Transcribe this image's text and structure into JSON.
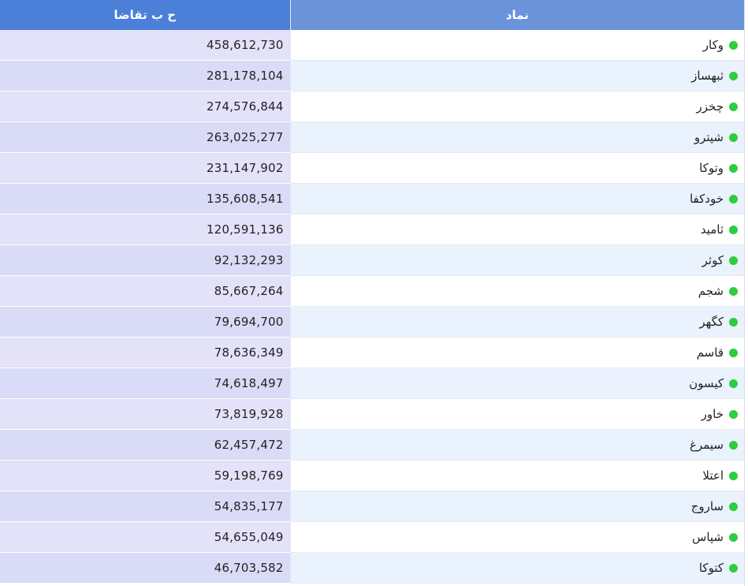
{
  "table": {
    "headers": {
      "value": "ح ب تقاضا",
      "symbol": "نماد"
    },
    "status_color": "#2ecc40",
    "rows": [
      {
        "symbol": "وکار",
        "value": "458,612,730",
        "status_icon": "green-dot-icon"
      },
      {
        "symbol": "ثبهساز",
        "value": "281,178,104",
        "status_icon": "green-dot-icon"
      },
      {
        "symbol": "چخزر",
        "value": "274,576,844",
        "status_icon": "green-dot-icon"
      },
      {
        "symbol": "شپترو",
        "value": "263,025,277",
        "status_icon": "green-dot-icon"
      },
      {
        "symbol": "وتوکا",
        "value": "231,147,902",
        "status_icon": "green-dot-icon"
      },
      {
        "symbol": "خودکفا",
        "value": "135,608,541",
        "status_icon": "green-dot-icon"
      },
      {
        "symbol": "ثامید",
        "value": "120,591,136",
        "status_icon": "green-dot-icon"
      },
      {
        "symbol": "کوثر",
        "value": "92,132,293",
        "status_icon": "green-dot-icon"
      },
      {
        "symbol": "شجم",
        "value": "85,667,264",
        "status_icon": "green-dot-icon"
      },
      {
        "symbol": "کگهر",
        "value": "79,694,700",
        "status_icon": "green-dot-icon"
      },
      {
        "symbol": "قاسم",
        "value": "78,636,349",
        "status_icon": "green-dot-icon"
      },
      {
        "symbol": "کیسون",
        "value": "74,618,497",
        "status_icon": "green-dot-icon"
      },
      {
        "symbol": "خاور",
        "value": "73,819,928",
        "status_icon": "green-dot-icon"
      },
      {
        "symbol": "سیمرغ",
        "value": "62,457,472",
        "status_icon": "green-dot-icon"
      },
      {
        "symbol": "اعتلا",
        "value": "59,198,769",
        "status_icon": "green-dot-icon"
      },
      {
        "symbol": "ساروج",
        "value": "54,835,177",
        "status_icon": "green-dot-icon"
      },
      {
        "symbol": "شپاس",
        "value": "54,655,049",
        "status_icon": "green-dot-icon"
      },
      {
        "symbol": "کتوکا",
        "value": "46,703,582",
        "status_icon": "green-dot-icon"
      }
    ]
  }
}
